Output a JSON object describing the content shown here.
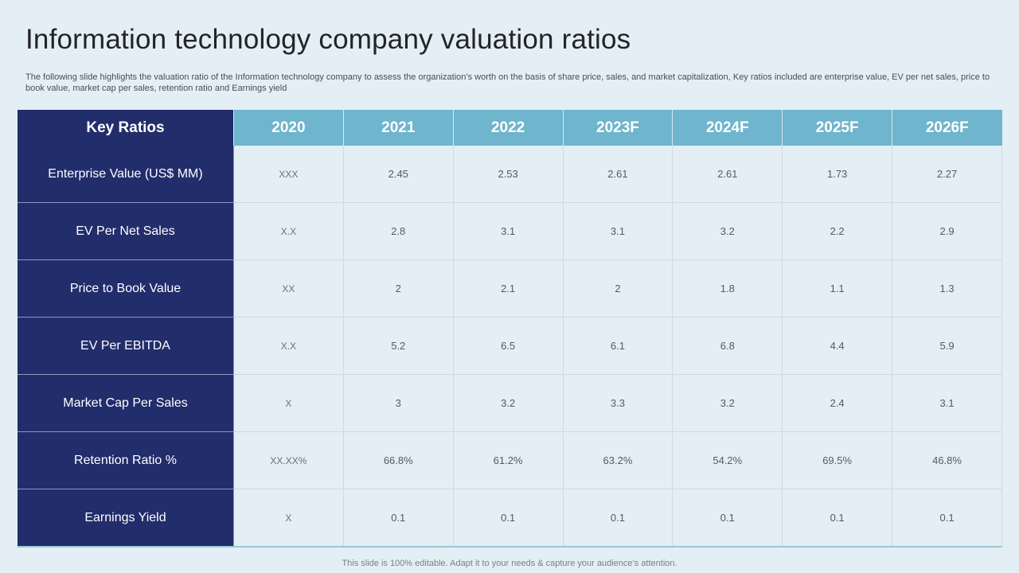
{
  "title": "Information technology company valuation ratios",
  "subtitle": "The following slide highlights the valuation ratio of the Information technology company to assess the organization’s worth on the basis of share price, sales, and market capitalization, Key ratios included are enterprise value, EV per net sales, price to book value,  market cap per sales, retention ratio and Earnings yield",
  "table": {
    "headers": [
      "Key Ratios",
      "2020",
      "2021",
      "2022",
      "2023F",
      "2024F",
      "2025F",
      "2026F"
    ],
    "rows": [
      {
        "label": "Enterprise Value (US$ MM)",
        "values": [
          "XXX",
          "2.45",
          "2.53",
          "2.61",
          "2.61",
          "1.73",
          "2.27"
        ]
      },
      {
        "label": "EV Per Net Sales",
        "values": [
          "X.X",
          "2.8",
          "3.1",
          "3.1",
          "3.2",
          "2.2",
          "2.9"
        ]
      },
      {
        "label": "Price to Book Value",
        "values": [
          "XX",
          "2",
          "2.1",
          "2",
          "1.8",
          "1.1",
          "1.3"
        ]
      },
      {
        "label": "EV Per EBITDA",
        "values": [
          "X.X",
          "5.2",
          "6.5",
          "6.1",
          "6.8",
          "4.4",
          "5.9"
        ]
      },
      {
        "label": "Market Cap Per Sales",
        "values": [
          "X",
          "3",
          "3.2",
          "3.3",
          "3.2",
          "2.4",
          "3.1"
        ]
      },
      {
        "label": "Retention  Ratio %",
        "values": [
          "XX.XX%",
          "66.8%",
          "61.2%",
          "63.2%",
          "54.2%",
          "69.5%",
          "46.8%"
        ]
      },
      {
        "label": "Earnings Yield",
        "values": [
          "X",
          "0.1",
          "0.1",
          "0.1",
          "0.1",
          "0.1",
          "0.1"
        ]
      }
    ]
  },
  "footer": "This slide is 100% editable. Adapt it to your needs & capture your audience’s attention."
}
